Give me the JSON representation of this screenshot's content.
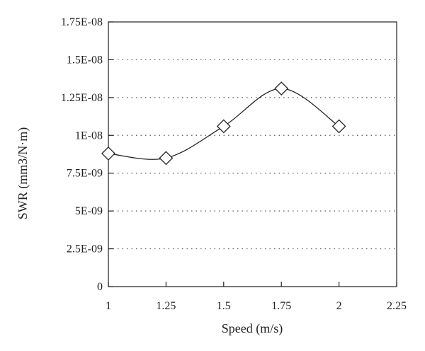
{
  "chart_data": {
    "type": "line",
    "xlabel": "Speed (m/s)",
    "ylabel": "SWR (mm3/N·m)",
    "xlim": [
      1,
      2.25
    ],
    "ylim": [
      0,
      1.75e-08
    ],
    "x_ticks": [
      1,
      1.25,
      1.5,
      1.75,
      2,
      2.25
    ],
    "x_tick_labels": [
      "1",
      "1.25",
      "1.5",
      "1.75",
      "2",
      "2.25"
    ],
    "y_ticks": [
      0,
      2.5e-09,
      5e-09,
      7.5e-09,
      1e-08,
      1.25e-08,
      1.5e-08,
      1.75e-08
    ],
    "y_tick_labels": [
      "0",
      "2.5E-09",
      "5E-09",
      "7.5E-09",
      "1E-08",
      "1.25E-08",
      "1.5E-08",
      "1.75E-08"
    ],
    "grid": "horizontal dotted",
    "series": [
      {
        "marker": "diamond",
        "smooth": true,
        "color": "#222222",
        "x": [
          1,
          1.25,
          1.5,
          1.75,
          2
        ],
        "y": [
          8.8e-09,
          8.5e-09,
          1.06e-08,
          1.31e-08,
          1.06e-08
        ]
      }
    ]
  }
}
